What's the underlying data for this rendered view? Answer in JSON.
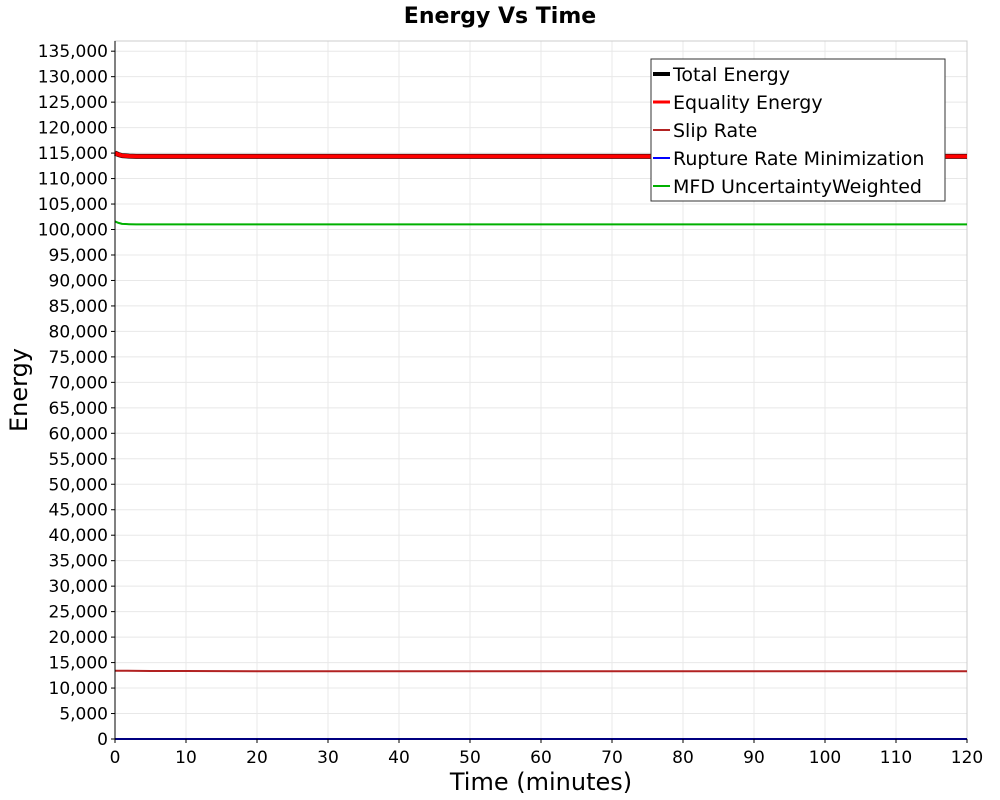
{
  "chart_data": {
    "type": "line",
    "title": "Energy Vs Time",
    "xlabel": "Time (minutes)",
    "ylabel": "Energy",
    "xlim": [
      0,
      120
    ],
    "ylim": [
      0,
      137000
    ],
    "grid": true,
    "legend_position": "top-right",
    "x_ticks": [
      0,
      10,
      20,
      30,
      40,
      50,
      60,
      70,
      80,
      90,
      100,
      110,
      120
    ],
    "x_tick_labels": [
      "0",
      "10",
      "20",
      "30",
      "40",
      "50",
      "60",
      "70",
      "80",
      "90",
      "100",
      "110",
      "120"
    ],
    "y_ticks": [
      0,
      5000,
      10000,
      15000,
      20000,
      25000,
      30000,
      35000,
      40000,
      45000,
      50000,
      55000,
      60000,
      65000,
      70000,
      75000,
      80000,
      85000,
      90000,
      95000,
      100000,
      105000,
      110000,
      115000,
      120000,
      125000,
      130000,
      135000
    ],
    "y_tick_labels": [
      "0",
      "5,000",
      "10,000",
      "15,000",
      "20,000",
      "25,000",
      "30,000",
      "35,000",
      "40,000",
      "45,000",
      "50,000",
      "55,000",
      "60,000",
      "65,000",
      "70,000",
      "75,000",
      "80,000",
      "85,000",
      "90,000",
      "95,000",
      "100,000",
      "105,000",
      "110,000",
      "115,000",
      "120,000",
      "125,000",
      "130,000",
      "135,000"
    ],
    "series": [
      {
        "name": "Total Energy",
        "color": "#000000",
        "x": [
          0,
          0.5,
          1,
          2,
          3,
          5,
          10,
          20,
          40,
          60,
          80,
          100,
          120
        ],
        "values": [
          115000,
          114700,
          114500,
          114400,
          114350,
          114350,
          114350,
          114350,
          114350,
          114350,
          114350,
          114350,
          114350
        ]
      },
      {
        "name": "Equality Energy",
        "color": "#ff0000",
        "x": [
          0,
          0.5,
          1,
          2,
          3,
          5,
          10,
          20,
          40,
          60,
          80,
          100,
          120
        ],
        "values": [
          115000,
          114700,
          114500,
          114400,
          114350,
          114350,
          114350,
          114350,
          114350,
          114350,
          114350,
          114350,
          114350
        ]
      },
      {
        "name": "Slip Rate",
        "color": "#b22222",
        "x": [
          0,
          1,
          5,
          10,
          20,
          40,
          60,
          80,
          100,
          120
        ],
        "values": [
          13400,
          13400,
          13350,
          13350,
          13300,
          13300,
          13300,
          13300,
          13300,
          13300
        ]
      },
      {
        "name": "Rupture Rate Minimization",
        "color": "#0000ff",
        "x": [
          0,
          120
        ],
        "values": [
          0,
          0
        ]
      },
      {
        "name": "MFD UncertaintyWeighted",
        "color": "#00b000",
        "x": [
          0,
          0.5,
          1,
          2,
          3,
          5,
          10,
          20,
          40,
          60,
          80,
          100,
          120
        ],
        "values": [
          101600,
          101300,
          101100,
          101050,
          101000,
          101000,
          101000,
          101000,
          101000,
          101000,
          101000,
          101000,
          101000
        ]
      }
    ]
  }
}
